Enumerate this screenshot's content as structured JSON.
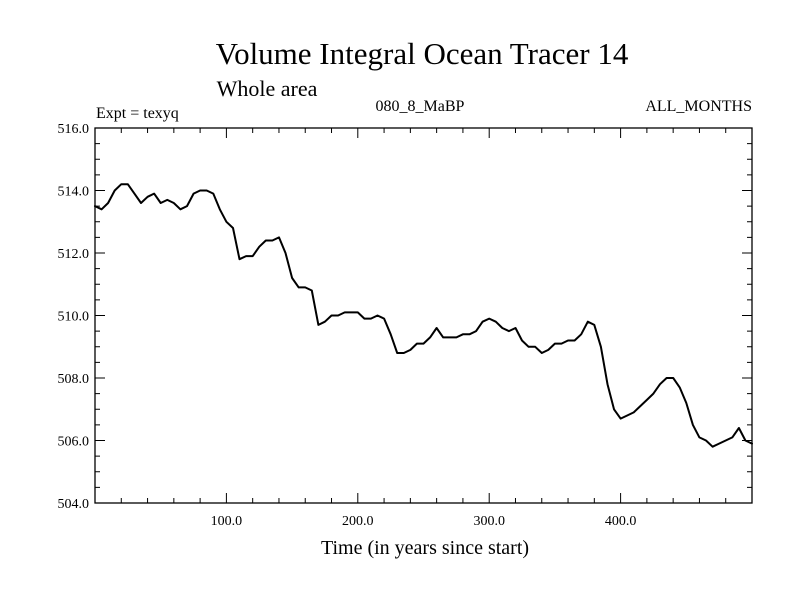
{
  "chart_data": {
    "type": "line",
    "title": "Volume Integral Ocean Tracer 14",
    "subtitle": "Whole area",
    "left_label": "Expt = texyq",
    "center_label": "080_8_MaBP",
    "right_label": "ALL_MONTHS",
    "xlabel": "Time (in years since start)",
    "ylabel": "",
    "xlim": [
      0,
      500
    ],
    "ylim": [
      504.0,
      516.0
    ],
    "x_ticks": [
      100,
      200,
      300,
      400
    ],
    "x_tick_labels": [
      "100.0",
      "200.0",
      "300.0",
      "400.0"
    ],
    "y_ticks": [
      504,
      506,
      508,
      510,
      512,
      514,
      516
    ],
    "y_tick_labels": [
      "504.0",
      "506.0",
      "508.0",
      "510.0",
      "512.0",
      "514.0",
      "516.0"
    ],
    "grid": false,
    "line_color": "#000000",
    "series": [
      {
        "x": [
          0,
          5,
          10,
          15,
          20,
          25,
          30,
          35,
          40,
          45,
          50,
          55,
          60,
          65,
          70,
          75,
          80,
          85,
          90,
          95,
          100,
          105,
          110,
          115,
          120,
          125,
          130,
          135,
          140,
          145,
          150,
          155,
          160,
          165,
          170,
          175,
          180,
          185,
          190,
          195,
          200,
          205,
          210,
          215,
          220,
          225,
          230,
          235,
          240,
          245,
          250,
          255,
          260,
          265,
          270,
          275,
          280,
          285,
          290,
          295,
          300,
          305,
          310,
          315,
          320,
          325,
          330,
          335,
          340,
          345,
          350,
          355,
          360,
          365,
          370,
          375,
          380,
          385,
          390,
          395,
          400,
          405,
          410,
          415,
          420,
          425,
          430,
          435,
          440,
          445,
          450,
          455,
          460,
          465,
          470,
          475,
          480,
          485,
          490,
          495,
          500
        ],
        "values": [
          513.5,
          513.4,
          513.6,
          514.0,
          514.2,
          514.2,
          513.9,
          513.6,
          513.8,
          513.9,
          513.6,
          513.7,
          513.6,
          513.4,
          513.5,
          513.9,
          514.0,
          514.0,
          513.9,
          513.4,
          513.0,
          512.8,
          511.8,
          511.9,
          511.9,
          512.2,
          512.4,
          512.4,
          512.5,
          512.0,
          511.2,
          510.9,
          510.9,
          510.8,
          509.7,
          509.8,
          510.0,
          510.0,
          510.1,
          510.1,
          510.1,
          509.9,
          509.9,
          510.0,
          509.9,
          509.4,
          508.8,
          508.8,
          508.9,
          509.1,
          509.1,
          509.3,
          509.6,
          509.3,
          509.3,
          509.3,
          509.4,
          509.4,
          509.5,
          509.8,
          509.9,
          509.8,
          509.6,
          509.5,
          509.6,
          509.2,
          509.0,
          509.0,
          508.8,
          508.9,
          509.1,
          509.1,
          509.2,
          509.2,
          509.4,
          509.8,
          509.7,
          509.0,
          507.8,
          507.0,
          506.7,
          506.8,
          506.9,
          507.1,
          507.3,
          507.5,
          507.8,
          508.0,
          508.0,
          507.7,
          507.2,
          506.5,
          506.1,
          506.0,
          505.8,
          505.9,
          506.0,
          506.1,
          506.4,
          506.0,
          505.9
        ]
      }
    ]
  }
}
